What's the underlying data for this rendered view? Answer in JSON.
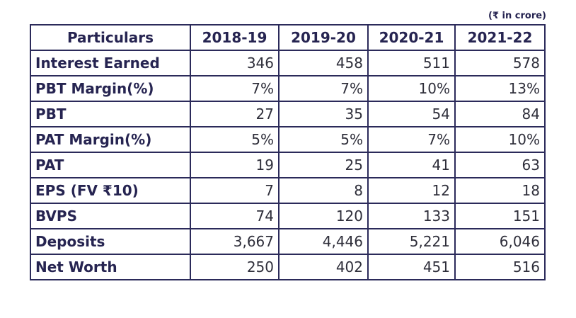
{
  "unit_note": "(₹ in crore)",
  "chart_data": {
    "type": "table",
    "columns": [
      "Particulars",
      "2018-19",
      "2019-20",
      "2020-21",
      "2021-22"
    ],
    "rows": [
      {
        "label": "Interest Earned",
        "values": [
          "346",
          "458",
          "511",
          "578"
        ]
      },
      {
        "label": "PBT Margin(%)",
        "values": [
          "7%",
          "7%",
          "10%",
          "13%"
        ]
      },
      {
        "label": "PBT",
        "values": [
          "27",
          "35",
          "54",
          "84"
        ]
      },
      {
        "label": "PAT Margin(%)",
        "values": [
          "5%",
          "5%",
          "7%",
          "10%"
        ]
      },
      {
        "label": "PAT",
        "values": [
          "19",
          "25",
          "41",
          "63"
        ]
      },
      {
        "label": "EPS (FV ₹10)",
        "values": [
          "7",
          "8",
          "12",
          "18"
        ]
      },
      {
        "label": "BVPS",
        "values": [
          "74",
          "120",
          "133",
          "151"
        ]
      },
      {
        "label": "Deposits",
        "values": [
          "3,667",
          "4,446",
          "5,221",
          "6,046"
        ]
      },
      {
        "label": "Net Worth",
        "values": [
          "250",
          "402",
          "451",
          "516"
        ]
      }
    ]
  }
}
